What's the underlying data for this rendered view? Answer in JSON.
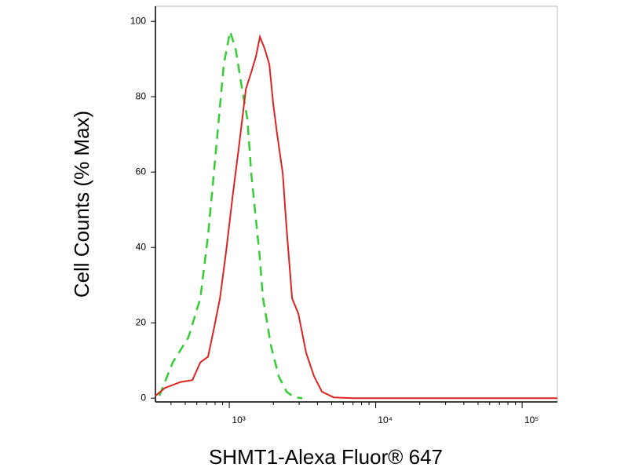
{
  "chart_data": {
    "type": "line",
    "x_label": "SHMT1-Alexa Fluor® 647",
    "y_label": "Cell Counts (% Max)",
    "xscale": "log",
    "xlim": [
      313,
      174000
    ],
    "ylim": [
      -1,
      104
    ],
    "xticks": [
      {
        "value": 1000,
        "label": "10³"
      },
      {
        "value": 10000,
        "label": "10⁴"
      },
      {
        "value": 100000,
        "label": "10⁵"
      }
    ],
    "xminorticks": [
      400,
      500,
      600,
      700,
      800,
      900,
      2000,
      3000,
      4000,
      5000,
      6000,
      7000,
      8000,
      9000,
      20000,
      30000,
      40000,
      50000,
      60000,
      70000,
      80000,
      90000
    ],
    "yticks": [
      0,
      20,
      40,
      60,
      80,
      100
    ],
    "series": [
      {
        "color": "#33cc33",
        "dashed": true,
        "x": [
          333,
          411,
          526,
          634,
          716,
          811,
          917,
          1012,
          1104,
          1218,
          1328,
          1413,
          1503,
          1600,
          1701,
          1923,
          2178,
          2462,
          2786,
          3153
        ],
        "values": [
          0.6,
          9.5,
          16.1,
          26.5,
          43.1,
          65.8,
          88.6,
          97.3,
          92.8,
          82.4,
          74.1,
          59.6,
          49.3,
          39,
          26.5,
          14,
          5.8,
          1.7,
          0.2,
          0
        ]
      },
      {
        "color": "#dd2222",
        "dashed": false,
        "x": [
          313,
          363,
          465,
          560,
          634,
          716,
          781,
          863,
          952,
          1050,
          1174,
          1297,
          1413,
          1521,
          1618,
          1742,
          1876,
          1997,
          2124,
          2317,
          2462,
          2686,
          2965,
          3350,
          3795,
          4293,
          5164,
          7031,
          174000
        ],
        "values": [
          0.6,
          2.7,
          4.3,
          4.8,
          9.5,
          11,
          18,
          26.5,
          39,
          53,
          68,
          82,
          86.5,
          90.7,
          95.9,
          92.8,
          88.6,
          78,
          70,
          59.6,
          45,
          26.5,
          22.4,
          12,
          5.8,
          1.7,
          0.2,
          0,
          0
        ]
      }
    ]
  }
}
